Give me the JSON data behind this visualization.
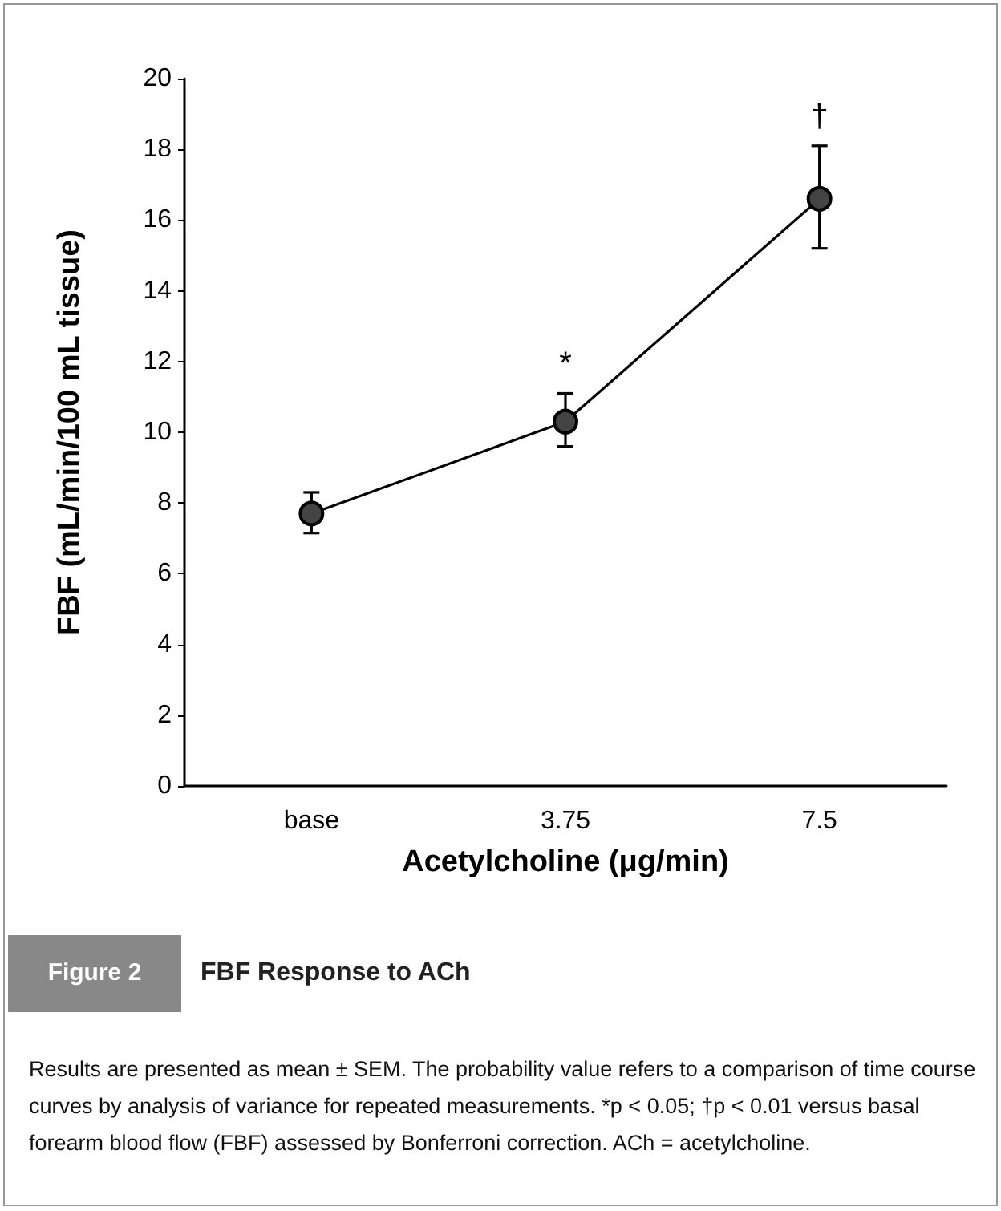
{
  "chart_data": {
    "type": "line",
    "title": "Figure 2",
    "subtitle": "FBF Response to ACh",
    "xlabel": "Acetylcholine (μg/min)",
    "ylabel": "FBF (mL/min/100 mL tissue)",
    "categories": [
      "base",
      "3.75",
      "7.5"
    ],
    "series": [
      {
        "color": "#000000",
        "values": [
          7.7,
          10.3,
          16.6
        ],
        "errors": [
          [
            7.15,
            8.3
          ],
          [
            9.6,
            11.1
          ],
          [
            15.2,
            18.1
          ]
        ]
      }
    ],
    "ylim": [
      0,
      20
    ],
    "yticks": [
      0,
      2,
      4,
      6,
      8,
      10,
      12,
      14,
      16,
      18,
      20
    ],
    "marker": "circle",
    "line_style": "solid",
    "grid": false,
    "legend": false,
    "annotations": [
      "*",
      "†",
      "Results are presented as mean ± SEM. The probability value refers to a comparison of time course curves by analysis of variance for repeated measurements. *p < 0.05; †p < 0.01 versus basal forearm blood flow (FBF) assessed by Bonferroni correction. ACh = acetylcholine."
    ]
  }
}
